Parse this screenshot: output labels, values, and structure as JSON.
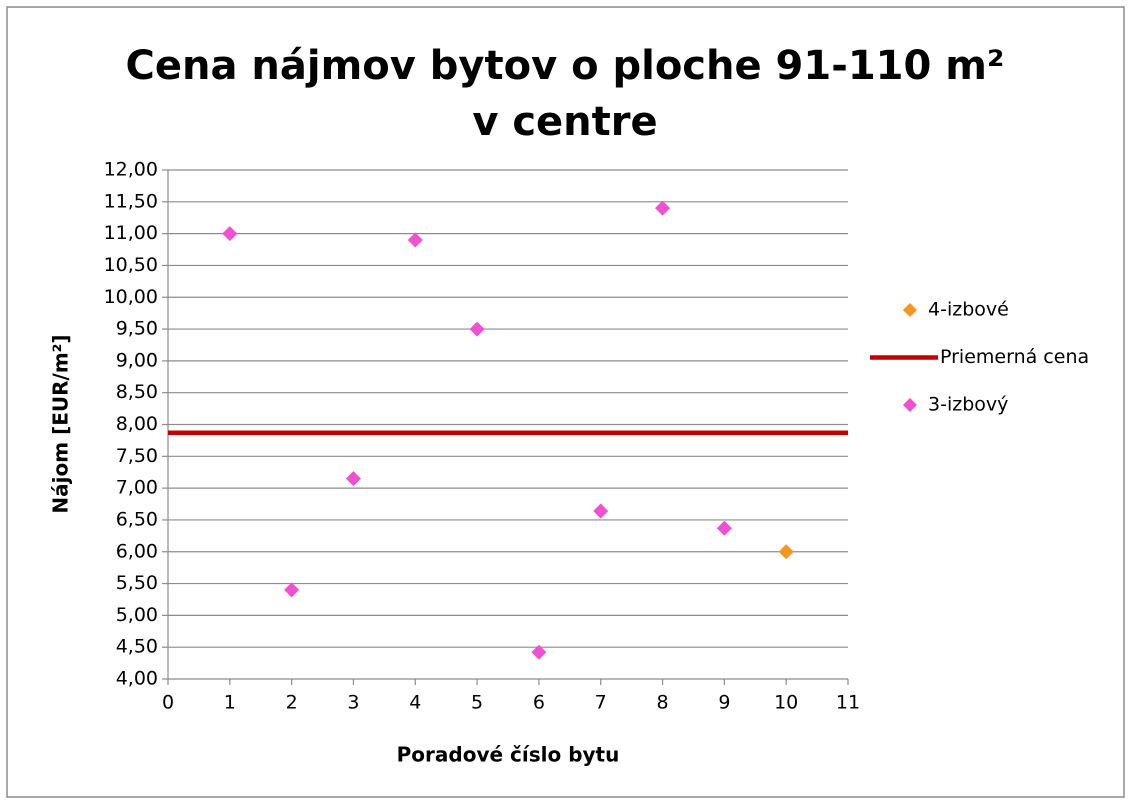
{
  "chart_data": {
    "type": "scatter",
    "title": "Cena nájmov bytov o ploche 91-110 m² v centre",
    "x_label": "Poradové číslo bytu",
    "y_label": "Nájom [EUR/m²]",
    "xlim": [
      0,
      11
    ],
    "xticks": [
      0,
      1,
      2,
      3,
      4,
      5,
      6,
      7,
      8,
      9,
      10,
      11
    ],
    "ylim": [
      4,
      12
    ],
    "yticks": [
      {
        "value": 4,
        "label": "4,00"
      },
      {
        "value": 4.5,
        "label": "4,50"
      },
      {
        "value": 5,
        "label": "5,00"
      },
      {
        "value": 5.5,
        "label": "5,50"
      },
      {
        "value": 6,
        "label": "6,00"
      },
      {
        "value": 6.5,
        "label": "6,50"
      },
      {
        "value": 7,
        "label": "7,00"
      },
      {
        "value": 7.5,
        "label": "7,50"
      },
      {
        "value": 8,
        "label": "8,00"
      },
      {
        "value": 8.5,
        "label": "8,50"
      },
      {
        "value": 9,
        "label": "9,00"
      },
      {
        "value": 9.5,
        "label": "9,50"
      },
      {
        "value": 10,
        "label": "10,00"
      },
      {
        "value": 10.5,
        "label": "10,50"
      },
      {
        "value": 11,
        "label": "11,00"
      },
      {
        "value": 11.5,
        "label": "11,50"
      },
      {
        "value": 12,
        "label": "12,00"
      }
    ],
    "grid": true,
    "legend": "right",
    "series": [
      {
        "name": "4-izbové",
        "color": "#f7961e",
        "marker": "diamond",
        "x": [
          10
        ],
        "values": [
          6.0
        ]
      },
      {
        "name": "Priemerná cena",
        "color": "#c00000",
        "line": true,
        "x": [
          0,
          11
        ],
        "values": [
          7.87,
          7.87
        ]
      },
      {
        "name": "3-izbový",
        "color": "#f050d2",
        "marker": "diamond",
        "x": [
          1,
          2,
          3,
          4,
          5,
          6,
          7,
          8,
          9
        ],
        "values": [
          11.0,
          5.4,
          7.15,
          10.9,
          9.5,
          4.42,
          6.64,
          11.4,
          6.37
        ]
      }
    ]
  }
}
